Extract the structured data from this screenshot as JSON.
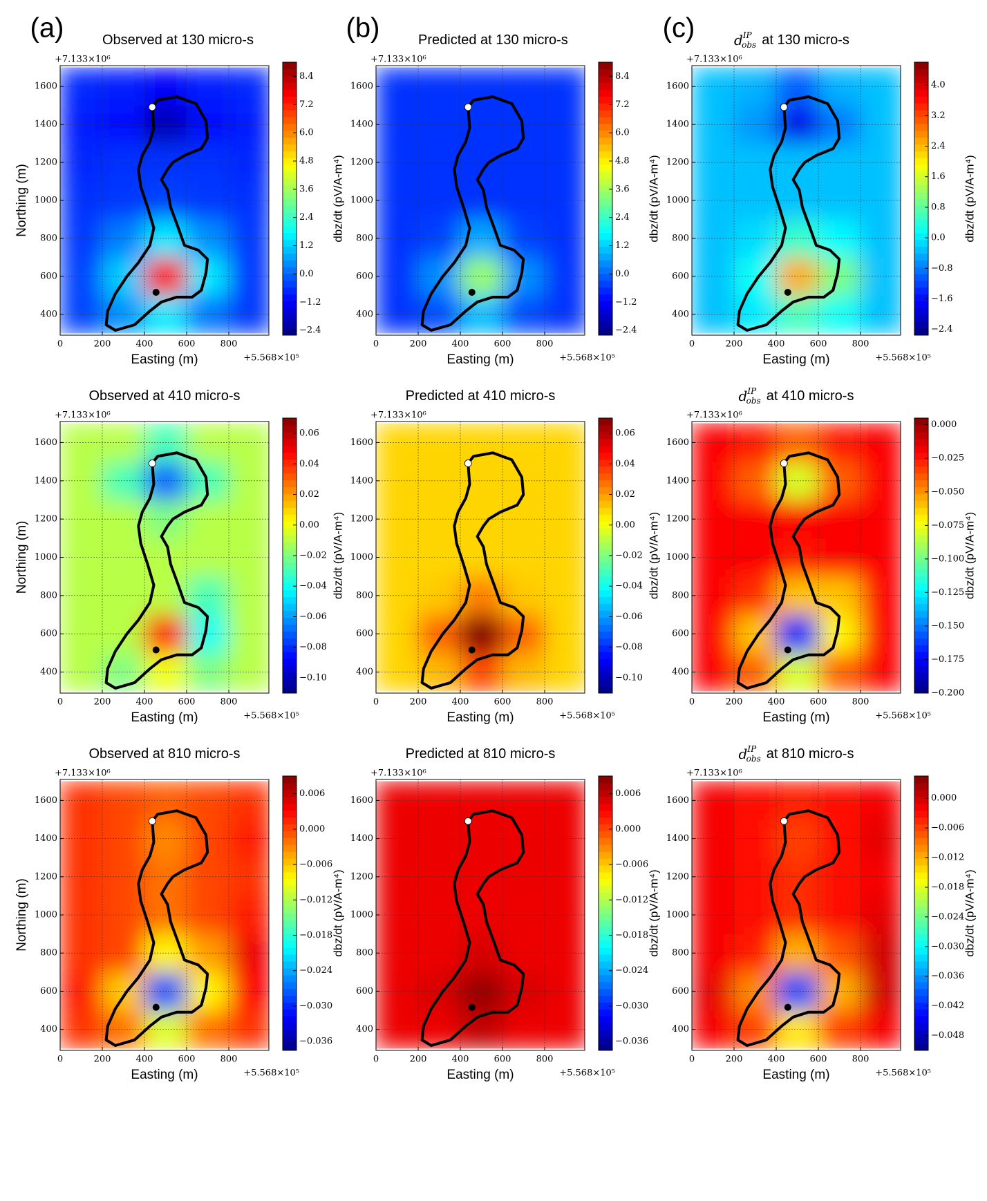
{
  "chart_data": [
    {
      "type": "contour",
      "panel_label": "(a)",
      "title": "Observed at 130 micro-s",
      "xlabel": "Easting (m)",
      "ylabel": "Northing (m)",
      "x_offset_label": "+5.568×10⁵",
      "y_offset_label": "+7.133×10⁶",
      "colorbar_label": "dbz/dt (pV/A-m⁴)",
      "colormap": "jet",
      "grid": true,
      "xlim": [
        0,
        990
      ],
      "ylim": [
        290,
        1710
      ],
      "xticks": [
        0,
        200,
        400,
        600,
        800
      ],
      "yticks": [
        400,
        600,
        800,
        1000,
        1200,
        1400,
        1600
      ],
      "x": [
        100,
        300,
        500,
        700,
        900
      ],
      "y": [
        400,
        600,
        800,
        1000,
        1200,
        1400,
        1600
      ],
      "z": [
        [
          -0.4,
          0.5,
          1.5,
          0.2,
          -0.5
        ],
        [
          -0.4,
          1.2,
          7.5,
          1.5,
          -0.5
        ],
        [
          -0.5,
          0.3,
          1.5,
          0.5,
          -0.5
        ],
        [
          -0.6,
          -0.5,
          -0.4,
          -0.5,
          -0.6
        ],
        [
          -0.7,
          -0.6,
          -0.6,
          -0.6,
          -0.7
        ],
        [
          -0.8,
          -1.0,
          -2.0,
          -1.0,
          -0.8
        ],
        [
          -0.7,
          -0.8,
          -1.2,
          -0.8,
          -0.7
        ]
      ],
      "zlim": [
        -2.6,
        9.0
      ],
      "zticks": [
        {
          "value": -2.4,
          "label": "−2.4"
        },
        {
          "value": -1.2,
          "label": "−1.2"
        },
        {
          "value": 0,
          "label": "0.0"
        },
        1.2,
        2.4,
        3.6,
        4.8,
        {
          "value": 6,
          "label": "6.0"
        },
        7.2,
        8.4
      ]
    },
    {
      "type": "contour",
      "panel_label": "(b)",
      "title": "Predicted at 130 micro-s",
      "xlabel": "Easting (m)",
      "x_offset_label": "+5.568×10⁵",
      "y_offset_label": "+7.133×10⁶",
      "colorbar_label": "dbz/dt (pV/A-m⁴)",
      "colormap": "jet",
      "grid": true,
      "xlim": [
        0,
        990
      ],
      "ylim": [
        290,
        1710
      ],
      "xticks": [
        0,
        200,
        400,
        600,
        800
      ],
      "yticks": [
        400,
        600,
        800,
        1000,
        1200,
        1400,
        1600
      ],
      "x": [
        100,
        300,
        500,
        700,
        900
      ],
      "y": [
        400,
        600,
        800,
        1000,
        1200,
        1400,
        1600
      ],
      "z": [
        [
          -0.6,
          -0.3,
          1.0,
          -0.3,
          -0.6
        ],
        [
          -0.6,
          0.5,
          3.5,
          0.5,
          -0.6
        ],
        [
          -0.6,
          -0.4,
          0.8,
          -0.4,
          -0.6
        ],
        [
          -0.6,
          -0.6,
          -0.6,
          -0.6,
          -0.6
        ],
        [
          -0.6,
          -0.6,
          -0.6,
          -0.6,
          -0.6
        ],
        [
          -0.6,
          -0.6,
          -0.6,
          -0.6,
          -0.6
        ],
        [
          -0.6,
          -0.6,
          -0.6,
          -0.6,
          -0.6
        ]
      ],
      "zlim": [
        -2.6,
        9.0
      ],
      "zticks": [
        {
          "value": -2.4,
          "label": "−2.4"
        },
        {
          "value": -1.2,
          "label": "−1.2"
        },
        {
          "value": 0,
          "label": "0.0"
        },
        1.2,
        2.4,
        3.6,
        4.8,
        {
          "value": 6,
          "label": "6.0"
        },
        7.2,
        8.4
      ]
    },
    {
      "type": "contour",
      "panel_label": "(c)",
      "title_symbol": {
        "base": "d",
        "sup": "IP",
        "sub": "obs"
      },
      "title": "at 130 micro-s",
      "xlabel": "Easting (m)",
      "x_offset_label": "+5.568×10⁵",
      "y_offset_label": "+7.133×10⁶",
      "colorbar_label": "dbz/dt (pV/A-m⁴)",
      "colormap": "jet",
      "grid": true,
      "xlim": [
        0,
        990
      ],
      "ylim": [
        290,
        1710
      ],
      "xticks": [
        0,
        200,
        400,
        600,
        800
      ],
      "yticks": [
        400,
        600,
        800,
        1000,
        1200,
        1400,
        1600
      ],
      "x": [
        100,
        300,
        500,
        700,
        900
      ],
      "y": [
        400,
        600,
        800,
        1000,
        1200,
        1400,
        1600
      ],
      "z": [
        [
          -0.3,
          0,
          0.6,
          0.2,
          -0.3
        ],
        [
          -0.3,
          0.2,
          2.5,
          1.0,
          -0.3
        ],
        [
          -0.3,
          -0.1,
          0.5,
          0.1,
          -0.3
        ],
        [
          -0.3,
          -0.3,
          -0.3,
          -0.3,
          -0.3
        ],
        [
          -0.3,
          -0.3,
          -0.3,
          -0.3,
          -0.3
        ],
        [
          -0.3,
          -0.6,
          -1.8,
          -0.8,
          -0.3
        ],
        [
          -0.3,
          -0.4,
          -1.0,
          -0.4,
          -0.3
        ]
      ],
      "zlim": [
        -2.55,
        4.6
      ],
      "zticks": [
        {
          "value": -2.4,
          "label": "−2.4"
        },
        {
          "value": -1.6,
          "label": "−1.6"
        },
        {
          "value": -0.8,
          "label": "−0.8"
        },
        {
          "value": 0,
          "label": "0.0"
        },
        0.8,
        1.6,
        2.4,
        3.2,
        {
          "value": 4,
          "label": "4.0"
        }
      ]
    },
    {
      "type": "contour",
      "title": "Observed at 410 micro-s",
      "xlabel": "Easting (m)",
      "ylabel": "Northing (m)",
      "x_offset_label": "+5.568×10⁵",
      "y_offset_label": "+7.133×10⁶",
      "colorbar_label": "dbz/dt (pV/A-m⁴)",
      "colormap": "jet",
      "grid": true,
      "xlim": [
        0,
        990
      ],
      "ylim": [
        290,
        1710
      ],
      "xticks": [
        0,
        200,
        400,
        600,
        800
      ],
      "yticks": [
        400,
        600,
        800,
        1000,
        1200,
        1400,
        1600
      ],
      "x": [
        100,
        300,
        500,
        700,
        900
      ],
      "y": [
        400,
        600,
        800,
        1000,
        1200,
        1400,
        1600
      ],
      "z": [
        [
          -0.01,
          -0.02,
          0.0,
          -0.02,
          -0.01
        ],
        [
          -0.01,
          -0.01,
          0.04,
          -0.04,
          -0.01
        ],
        [
          -0.01,
          -0.01,
          -0.01,
          -0.03,
          -0.01
        ],
        [
          -0.01,
          -0.01,
          -0.01,
          -0.01,
          -0.01
        ],
        [
          -0.01,
          -0.01,
          -0.02,
          -0.01,
          -0.01
        ],
        [
          -0.01,
          -0.03,
          -0.07,
          -0.03,
          -0.01
        ],
        [
          -0.01,
          -0.01,
          -0.03,
          -0.01,
          -0.01
        ]
      ],
      "zlim": [
        -0.11,
        0.07
      ],
      "zticks": [
        {
          "value": -0.1,
          "label": "−0.10"
        },
        {
          "value": -0.08,
          "label": "−0.08"
        },
        {
          "value": -0.06,
          "label": "−0.06"
        },
        {
          "value": -0.04,
          "label": "−0.04"
        },
        {
          "value": -0.02,
          "label": "−0.02"
        },
        {
          "value": 0,
          "label": "0.00"
        },
        0.02,
        0.04,
        0.06
      ]
    },
    {
      "type": "contour",
      "title": "Predicted at 410 micro-s",
      "xlabel": "Easting (m)",
      "x_offset_label": "+5.568×10⁵",
      "y_offset_label": "+7.133×10⁶",
      "colorbar_label": "dbz/dt (pV/A-m⁴)",
      "colormap": "jet",
      "grid": true,
      "xlim": [
        0,
        990
      ],
      "ylim": [
        290,
        1710
      ],
      "xticks": [
        0,
        200,
        400,
        600,
        800
      ],
      "yticks": [
        400,
        600,
        800,
        1000,
        1200,
        1400,
        1600
      ],
      "x": [
        100,
        300,
        500,
        700,
        900
      ],
      "y": [
        400,
        600,
        800,
        1000,
        1200,
        1400,
        1600
      ],
      "z": [
        [
          0.01,
          0.015,
          0.035,
          0.015,
          0.01
        ],
        [
          0.01,
          0.03,
          0.07,
          0.03,
          0.01
        ],
        [
          0.01,
          0.012,
          0.025,
          0.012,
          0.01
        ],
        [
          0.01,
          0.01,
          0.01,
          0.01,
          0.01
        ],
        [
          0.01,
          0.01,
          0.01,
          0.01,
          0.01
        ],
        [
          0.01,
          0.01,
          0.01,
          0.01,
          0.01
        ],
        [
          0.01,
          0.01,
          0.01,
          0.01,
          0.01
        ]
      ],
      "zlim": [
        -0.11,
        0.07
      ],
      "zticks": [
        {
          "value": -0.1,
          "label": "−0.10"
        },
        {
          "value": -0.08,
          "label": "−0.08"
        },
        {
          "value": -0.06,
          "label": "−0.06"
        },
        {
          "value": -0.04,
          "label": "−0.04"
        },
        {
          "value": -0.02,
          "label": "−0.02"
        },
        {
          "value": 0,
          "label": "0.00"
        },
        0.02,
        0.04,
        0.06
      ]
    },
    {
      "type": "contour",
      "title_symbol": {
        "base": "d",
        "sup": "IP",
        "sub": "obs"
      },
      "title": "at 410 micro-s",
      "xlabel": "Easting (m)",
      "x_offset_label": "+5.568×10⁵",
      "y_offset_label": "+7.133×10⁶",
      "colorbar_label": "dbz/dt (pV/A-m⁴)",
      "colormap": "jet",
      "grid": true,
      "xlim": [
        0,
        990
      ],
      "ylim": [
        290,
        1710
      ],
      "xticks": [
        0,
        200,
        400,
        600,
        800
      ],
      "yticks": [
        400,
        600,
        800,
        1000,
        1200,
        1400,
        1600
      ],
      "x": [
        100,
        300,
        500,
        700,
        900
      ],
      "y": [
        400,
        600,
        800,
        1000,
        1200,
        1400,
        1600
      ],
      "z": [
        [
          -0.02,
          -0.04,
          -0.08,
          -0.04,
          -0.02
        ],
        [
          -0.02,
          -0.06,
          -0.17,
          -0.07,
          -0.02
        ],
        [
          -0.02,
          -0.03,
          -0.06,
          -0.06,
          -0.02
        ],
        [
          -0.02,
          -0.02,
          -0.025,
          -0.02,
          -0.02
        ],
        [
          -0.02,
          -0.02,
          -0.02,
          -0.02,
          -0.02
        ],
        [
          -0.02,
          -0.04,
          -0.08,
          -0.04,
          -0.02
        ],
        [
          -0.02,
          -0.025,
          -0.04,
          -0.025,
          -0.02
        ]
      ],
      "zlim": [
        -0.2,
        0.005
      ],
      "zticks": [
        {
          "value": -0.2,
          "label": "−0.200"
        },
        {
          "value": -0.175,
          "label": "−0.175"
        },
        {
          "value": -0.15,
          "label": "−0.150"
        },
        {
          "value": -0.125,
          "label": "−0.125"
        },
        {
          "value": -0.1,
          "label": "−0.100"
        },
        {
          "value": -0.075,
          "label": "−0.075"
        },
        {
          "value": -0.05,
          "label": "−0.050"
        },
        {
          "value": -0.025,
          "label": "−0.025"
        },
        {
          "value": 0,
          "label": "0.000"
        }
      ]
    },
    {
      "type": "contour",
      "title": "Observed at 810 micro-s",
      "xlabel": "Easting (m)",
      "ylabel": "Northing (m)",
      "x_offset_label": "+5.568×10⁵",
      "y_offset_label": "+7.133×10⁶",
      "colorbar_label": "dbz/dt (pV/A-m⁴)",
      "colormap": "jet",
      "grid": true,
      "xlim": [
        0,
        990
      ],
      "ylim": [
        290,
        1710
      ],
      "xticks": [
        0,
        200,
        400,
        600,
        800
      ],
      "yticks": [
        400,
        600,
        800,
        1000,
        1200,
        1400,
        1600
      ],
      "x": [
        100,
        300,
        500,
        700,
        900
      ],
      "y": [
        400,
        600,
        800,
        1000,
        1200,
        1400,
        1600
      ],
      "z": [
        [
          0.001,
          -0.002,
          -0.01,
          -0.002,
          0.001
        ],
        [
          0.002,
          -0.006,
          -0.028,
          -0.008,
          0.003
        ],
        [
          0.001,
          0.0,
          -0.008,
          -0.004,
          0.004
        ],
        [
          0.001,
          0.0,
          -0.002,
          0.0,
          0.002
        ],
        [
          0.001,
          0.0,
          -0.002,
          0.0,
          0.001
        ],
        [
          0.001,
          0.0,
          -0.003,
          0.0,
          0.002
        ],
        [
          0.001,
          0.0,
          -0.001,
          0.0,
          0.001
        ]
      ],
      "zlim": [
        -0.0375,
        0.009
      ],
      "zticks": [
        {
          "value": -0.036,
          "label": "−0.036"
        },
        {
          "value": -0.03,
          "label": "−0.030"
        },
        {
          "value": -0.024,
          "label": "−0.024"
        },
        {
          "value": -0.018,
          "label": "−0.018"
        },
        {
          "value": -0.012,
          "label": "−0.012"
        },
        {
          "value": -0.006,
          "label": "−0.006"
        },
        {
          "value": 0,
          "label": "0.000"
        },
        0.006
      ]
    },
    {
      "type": "contour",
      "title": "Predicted at 810 micro-s",
      "xlabel": "Easting (m)",
      "x_offset_label": "+5.568×10⁵",
      "y_offset_label": "+7.133×10⁶",
      "colorbar_label": "dbz/dt (pV/A-m⁴)",
      "colormap": "jet",
      "grid": true,
      "xlim": [
        0,
        990
      ],
      "ylim": [
        290,
        1710
      ],
      "xticks": [
        0,
        200,
        400,
        600,
        800
      ],
      "yticks": [
        400,
        600,
        800,
        1000,
        1200,
        1400,
        1600
      ],
      "x": [
        100,
        300,
        500,
        700,
        900
      ],
      "y": [
        400,
        600,
        800,
        1000,
        1200,
        1400,
        1600
      ],
      "z": [
        [
          0.004,
          0.004,
          0.006,
          0.004,
          0.004
        ],
        [
          0.004,
          0.005,
          0.008,
          0.005,
          0.004
        ],
        [
          0.004,
          0.004,
          0.005,
          0.004,
          0.004
        ],
        [
          0.004,
          0.004,
          0.004,
          0.004,
          0.004
        ],
        [
          0.004,
          0.004,
          0.004,
          0.004,
          0.004
        ],
        [
          0.004,
          0.004,
          0.004,
          0.004,
          0.004
        ],
        [
          0.004,
          0.004,
          0.004,
          0.004,
          0.004
        ]
      ],
      "zlim": [
        -0.0375,
        0.009
      ],
      "zticks": [
        {
          "value": -0.036,
          "label": "−0.036"
        },
        {
          "value": -0.03,
          "label": "−0.030"
        },
        {
          "value": -0.024,
          "label": "−0.024"
        },
        {
          "value": -0.018,
          "label": "−0.018"
        },
        {
          "value": -0.012,
          "label": "−0.012"
        },
        {
          "value": -0.006,
          "label": "−0.006"
        },
        {
          "value": 0,
          "label": "0.000"
        },
        0.006
      ]
    },
    {
      "type": "contour",
      "title_symbol": {
        "base": "d",
        "sup": "IP",
        "sub": "obs"
      },
      "title": "at 810 micro-s",
      "xlabel": "Easting (m)",
      "x_offset_label": "+5.568×10⁵",
      "y_offset_label": "+7.133×10⁶",
      "colorbar_label": "dbz/dt (pV/A-m⁴)",
      "colormap": "jet",
      "grid": true,
      "xlim": [
        0,
        990
      ],
      "ylim": [
        290,
        1710
      ],
      "xticks": [
        0,
        200,
        400,
        600,
        800
      ],
      "yticks": [
        400,
        600,
        800,
        1000,
        1200,
        1400,
        1600
      ],
      "x": [
        100,
        300,
        500,
        700,
        900
      ],
      "y": [
        400,
        600,
        800,
        1000,
        1200,
        1400,
        1600
      ],
      "z": [
        [
          -0.002,
          -0.006,
          -0.015,
          -0.006,
          -0.002
        ],
        [
          -0.001,
          -0.01,
          -0.04,
          -0.012,
          0.0
        ],
        [
          -0.002,
          -0.004,
          -0.012,
          -0.007,
          0.0
        ],
        [
          -0.002,
          -0.003,
          -0.005,
          -0.003,
          -0.001
        ],
        [
          -0.002,
          -0.003,
          -0.005,
          -0.003,
          -0.002
        ],
        [
          -0.002,
          -0.003,
          -0.006,
          -0.003,
          -0.001
        ],
        [
          -0.002,
          -0.003,
          -0.004,
          -0.003,
          -0.002
        ]
      ],
      "zlim": [
        -0.051,
        0.0045
      ],
      "zticks": [
        {
          "value": -0.048,
          "label": "−0.048"
        },
        {
          "value": -0.042,
          "label": "−0.042"
        },
        {
          "value": -0.036,
          "label": "−0.036"
        },
        {
          "value": -0.03,
          "label": "−0.030"
        },
        {
          "value": -0.024,
          "label": "−0.024"
        },
        {
          "value": -0.018,
          "label": "−0.018"
        },
        {
          "value": -0.012,
          "label": "−0.012"
        },
        {
          "value": -0.006,
          "label": "−0.006"
        },
        {
          "value": 0,
          "label": "0.000"
        }
      ]
    }
  ]
}
